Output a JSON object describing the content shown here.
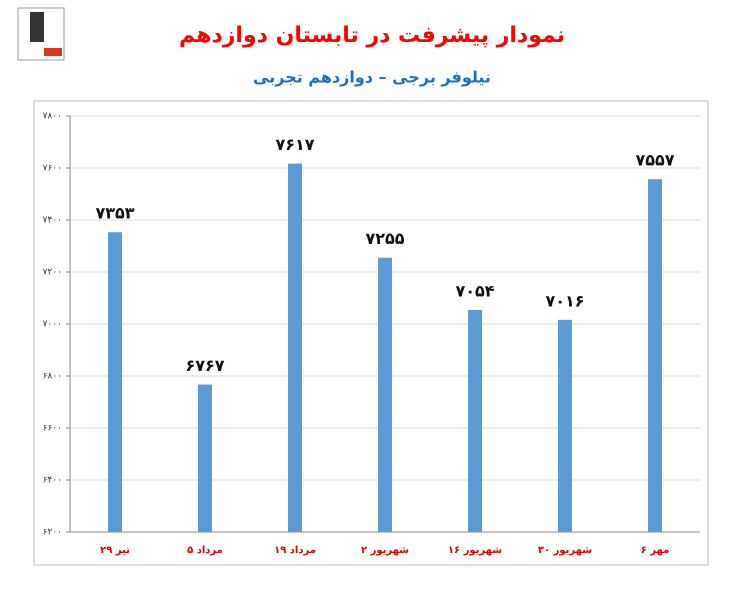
{
  "chart_data": {
    "type": "bar",
    "title": "نمودار پیشرفت در تابستان دوازدهم",
    "subtitle": "نیلوفر برجی – دوازدهم تجربی",
    "categories": [
      "۲۹ تیر",
      "۵ مرداد",
      "۱۹ مرداد",
      "۲ شهریور",
      "۱۶ شهریور",
      "۳۰ شهریور",
      "۶ مهر"
    ],
    "values": [
      7353,
      6767,
      7617,
      7255,
      7054,
      7016,
      7557
    ],
    "value_labels": [
      "۷۳۵۳",
      "۶۷۶۷",
      "۷۶۱۷",
      "۷۲۵۵",
      "۷۰۵۴",
      "۷۰۱۶",
      "۷۵۵۷"
    ],
    "color": "#5b9bd5",
    "ylim": [
      6200,
      7800
    ],
    "yticks": [
      {
        "value": 6200,
        "label": "۶۲۰۰"
      },
      {
        "value": 6400,
        "label": "۶۴۰۰"
      },
      {
        "value": 6600,
        "label": "۶۶۰۰"
      },
      {
        "value": 6800,
        "label": "۶۸۰۰"
      },
      {
        "value": 7000,
        "label": "۷۰۰۰"
      },
      {
        "value": 7200,
        "label": "۷۲۰۰"
      },
      {
        "value": 7400,
        "label": "۷۴۰۰"
      },
      {
        "value": 7600,
        "label": "۷۶۰۰"
      },
      {
        "value": 7800,
        "label": "۷۸۰۰"
      }
    ],
    "grid": true
  }
}
